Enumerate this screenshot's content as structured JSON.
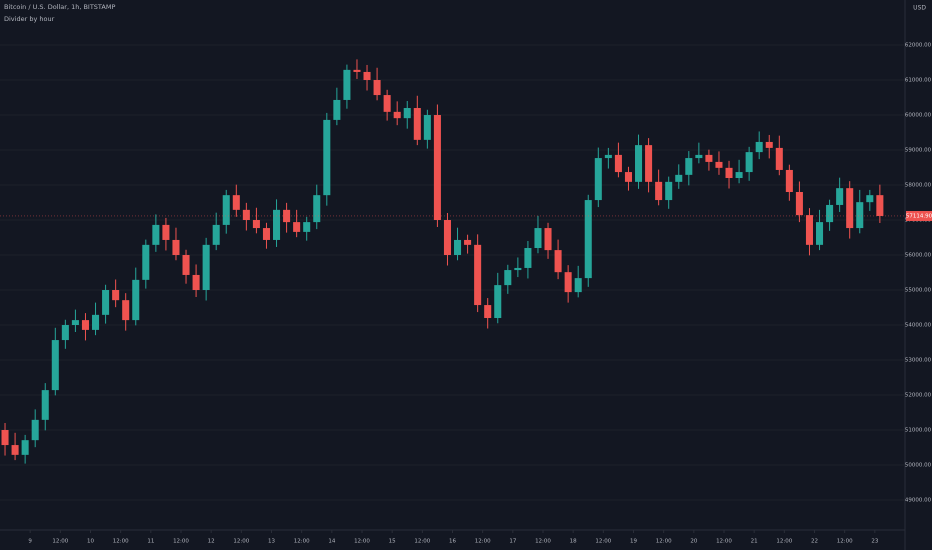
{
  "chart_data": {
    "type": "candlestick",
    "title": "Bitcoin / U.S. Dollar, 1h, BITSTAMP",
    "subtitle": "Divider by hour",
    "currency": "USD",
    "last_price_label": "57114.90",
    "up_color": "#26a69a",
    "down_color": "#ef5350",
    "x": [
      0,
      1,
      2,
      3,
      4,
      5,
      6,
      7,
      8,
      9,
      10,
      11,
      12,
      13,
      14,
      15,
      16,
      17,
      18,
      19,
      20,
      21,
      22,
      23,
      24,
      25,
      26,
      27,
      28,
      29,
      30,
      31,
      32,
      33,
      34,
      35,
      36,
      37,
      38,
      39,
      40,
      41,
      42,
      43,
      44,
      45,
      46,
      47,
      48,
      49,
      50,
      51,
      52,
      53,
      54,
      55,
      56,
      57,
      58,
      59,
      60,
      61,
      62,
      63,
      64,
      65,
      66,
      67,
      68,
      69,
      70,
      71,
      72,
      73,
      74,
      75,
      76,
      77,
      78,
      79,
      80,
      81,
      82,
      83,
      84,
      85,
      86,
      87
    ],
    "open": [
      51000,
      50570,
      50290,
      50710,
      51290,
      52140,
      53570,
      54000,
      54140,
      53860,
      54290,
      55000,
      54710,
      54140,
      55290,
      56290,
      56860,
      56430,
      56000,
      55430,
      55000,
      56290,
      56860,
      57710,
      57290,
      57000,
      56770,
      56430,
      57290,
      56940,
      56660,
      56940,
      57710,
      59860,
      60430,
      61290,
      61230,
      61000,
      60570,
      60090,
      59910,
      60200,
      59290,
      60000,
      57000,
      56000,
      56430,
      56290,
      54570,
      54200,
      55140,
      55570,
      55630,
      56200,
      56770,
      56140,
      55510,
      54940,
      55340,
      57570,
      58770,
      58860,
      58370,
      58090,
      59140,
      58090,
      57570,
      58090,
      58290,
      58770,
      58860,
      58660,
      58490,
      58200,
      58370,
      58940,
      59230,
      59060,
      58430,
      57800,
      57140,
      56290,
      56940,
      57430,
      57910,
      56770,
      57510,
      57710
    ],
    "high": [
      51200,
      50920,
      50860,
      51590,
      52340,
      53920,
      54150,
      54440,
      54340,
      54640,
      55150,
      55300,
      54910,
      55640,
      56440,
      57160,
      57060,
      56780,
      56150,
      55730,
      56490,
      57210,
      57860,
      58010,
      57490,
      57350,
      56920,
      57590,
      57490,
      57290,
      57090,
      58010,
      60060,
      60780,
      61440,
      61590,
      61430,
      61350,
      60720,
      60390,
      60400,
      60550,
      60150,
      60300,
      57200,
      56780,
      56580,
      56590,
      54770,
      55490,
      55720,
      55930,
      56400,
      57120,
      56920,
      56440,
      55710,
      55690,
      57720,
      59070,
      59060,
      59210,
      58520,
      59440,
      59340,
      58440,
      58240,
      58590,
      58970,
      59210,
      59010,
      58960,
      58690,
      58720,
      59090,
      59530,
      59430,
      59410,
      58580,
      58100,
      57340,
      57290,
      57580,
      58210,
      58110,
      57860,
      57860,
      58010
    ],
    "low": [
      50270,
      50140,
      50040,
      50510,
      50990,
      51990,
      53320,
      53800,
      53560,
      53710,
      54040,
      54510,
      53840,
      53990,
      55040,
      56090,
      56130,
      55850,
      55180,
      54800,
      54700,
      56140,
      56610,
      57090,
      56700,
      56620,
      56180,
      56230,
      56640,
      56510,
      56410,
      56740,
      57410,
      59710,
      60180,
      61030,
      60700,
      60420,
      59840,
      59710,
      59610,
      59140,
      59040,
      56800,
      55700,
      55850,
      56040,
      54370,
      53900,
      54050,
      54890,
      55370,
      55330,
      56050,
      55890,
      55310,
      54640,
      54790,
      55090,
      57370,
      58470,
      58220,
      57840,
      57890,
      57790,
      57420,
      57320,
      57890,
      57990,
      58620,
      58410,
      58290,
      57900,
      58050,
      58120,
      58740,
      58760,
      58280,
      57550,
      56940,
      55990,
      56140,
      56690,
      57230,
      56470,
      56620,
      57260,
      56915
    ],
    "close": [
      50570,
      50290,
      50710,
      51290,
      52140,
      53570,
      54000,
      54140,
      53860,
      54290,
      55000,
      54710,
      54140,
      55290,
      56290,
      56860,
      56430,
      56000,
      55430,
      55000,
      56290,
      56860,
      57710,
      57290,
      57000,
      56770,
      56430,
      57290,
      56940,
      56660,
      56940,
      57710,
      59860,
      60430,
      61290,
      61230,
      61000,
      60570,
      60090,
      59910,
      60200,
      59290,
      60000,
      57000,
      56000,
      56430,
      56290,
      54570,
      54200,
      55140,
      55570,
      55630,
      56200,
      56770,
      56140,
      55510,
      54940,
      55340,
      57570,
      58770,
      58860,
      58370,
      58090,
      59140,
      58090,
      57570,
      58090,
      58290,
      58770,
      58860,
      58660,
      58490,
      58200,
      58370,
      58940,
      59230,
      59060,
      58430,
      57800,
      57140,
      56290,
      56940,
      57430,
      57910,
      56770,
      57510,
      57710,
      57115
    ],
    "xlim": [
      -0.5,
      89.5
    ],
    "xticks": [
      {
        "value": 2.5,
        "label": "9"
      },
      {
        "value": 5.5,
        "label": "12:00"
      },
      {
        "value": 8.5,
        "label": "10"
      },
      {
        "value": 11.5,
        "label": "12:00"
      },
      {
        "value": 14.5,
        "label": "11"
      },
      {
        "value": 17.5,
        "label": "12:00"
      },
      {
        "value": 20.5,
        "label": "12"
      },
      {
        "value": 23.5,
        "label": "12:00"
      },
      {
        "value": 26.5,
        "label": "13"
      },
      {
        "value": 29.5,
        "label": "12:00"
      },
      {
        "value": 32.5,
        "label": "14"
      },
      {
        "value": 35.5,
        "label": "12:00"
      },
      {
        "value": 38.5,
        "label": "15"
      },
      {
        "value": 41.5,
        "label": "12:00"
      },
      {
        "value": 44.5,
        "label": "16"
      },
      {
        "value": 47.5,
        "label": "12:00"
      },
      {
        "value": 50.5,
        "label": "17"
      },
      {
        "value": 53.5,
        "label": "12:00"
      },
      {
        "value": 56.5,
        "label": "18"
      },
      {
        "value": 59.5,
        "label": "12:00"
      },
      {
        "value": 62.5,
        "label": "19"
      },
      {
        "value": 65.5,
        "label": "12:00"
      },
      {
        "value": 68.5,
        "label": "20"
      },
      {
        "value": 71.5,
        "label": "12:00"
      },
      {
        "value": 74.5,
        "label": "21"
      },
      {
        "value": 77.5,
        "label": "12:00"
      },
      {
        "value": 80.5,
        "label": "22"
      },
      {
        "value": 83.5,
        "label": "12:00"
      },
      {
        "value": 86.5,
        "label": "23"
      }
    ],
    "ylim": [
      48143,
      63286
    ],
    "yticks": [
      {
        "value": 49000,
        "label": "49000.00"
      },
      {
        "value": 50000,
        "label": "50000.00"
      },
      {
        "value": 51000,
        "label": "51000.00"
      },
      {
        "value": 52000,
        "label": "52000.00"
      },
      {
        "value": 53000,
        "label": "53000.00"
      },
      {
        "value": 54000,
        "label": "54000.00"
      },
      {
        "value": 55000,
        "label": "55000.00"
      },
      {
        "value": 56000,
        "label": "56000.00"
      },
      {
        "value": 57000,
        "label": "57000.00"
      },
      {
        "value": 58000,
        "label": "58000.00"
      },
      {
        "value": 59000,
        "label": "59000.00"
      },
      {
        "value": 60000,
        "label": "60000.00"
      },
      {
        "value": 61000,
        "label": "61000.00"
      },
      {
        "value": 62000,
        "label": "62000.00"
      }
    ],
    "grid": true
  }
}
